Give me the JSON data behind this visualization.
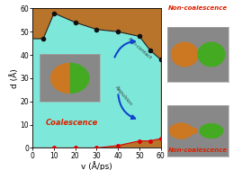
{
  "upper_boundary_x": [
    0,
    5,
    10,
    20,
    30,
    40,
    50,
    55,
    60
  ],
  "upper_boundary_y": [
    47,
    47,
    58,
    54,
    51,
    50,
    48,
    42,
    38
  ],
  "lower_boundary_x": [
    0,
    10,
    20,
    30,
    40,
    50,
    55,
    60
  ],
  "lower_boundary_y": [
    0,
    0,
    0,
    0,
    1,
    3,
    3,
    4
  ],
  "upper_dots_x": [
    5,
    10,
    20,
    30,
    40,
    50,
    55,
    60
  ],
  "upper_dots_y": [
    47,
    58,
    54,
    51,
    50,
    48,
    42,
    38
  ],
  "lower_dots_x": [
    10,
    20,
    30,
    40,
    50,
    55,
    60
  ],
  "lower_dots_y": [
    0,
    0,
    0,
    1,
    3,
    3,
    4
  ],
  "xlim": [
    0,
    60
  ],
  "ylim": [
    0,
    60
  ],
  "xlabel": "v (Å/ps)",
  "ylabel": "d (Å)",
  "brown_color": "#b8742a",
  "coalescence_color": "#7de8da",
  "upper_line_color": "#222222",
  "lower_line_color": "#dd0000",
  "upper_dot_color": "#111111",
  "lower_dot_color": "#dd0000",
  "coalescence_text_color": "#dd2200",
  "noncoalescence_text_color": "#dd2200",
  "arrow_color": "#1144cc",
  "inset_bg": "#888888",
  "orange_color": "#cc7722",
  "green_color": "#44aa22",
  "xticks": [
    0,
    10,
    20,
    30,
    40,
    50,
    60
  ],
  "yticks": [
    0,
    10,
    20,
    30,
    40,
    50,
    60
  ]
}
